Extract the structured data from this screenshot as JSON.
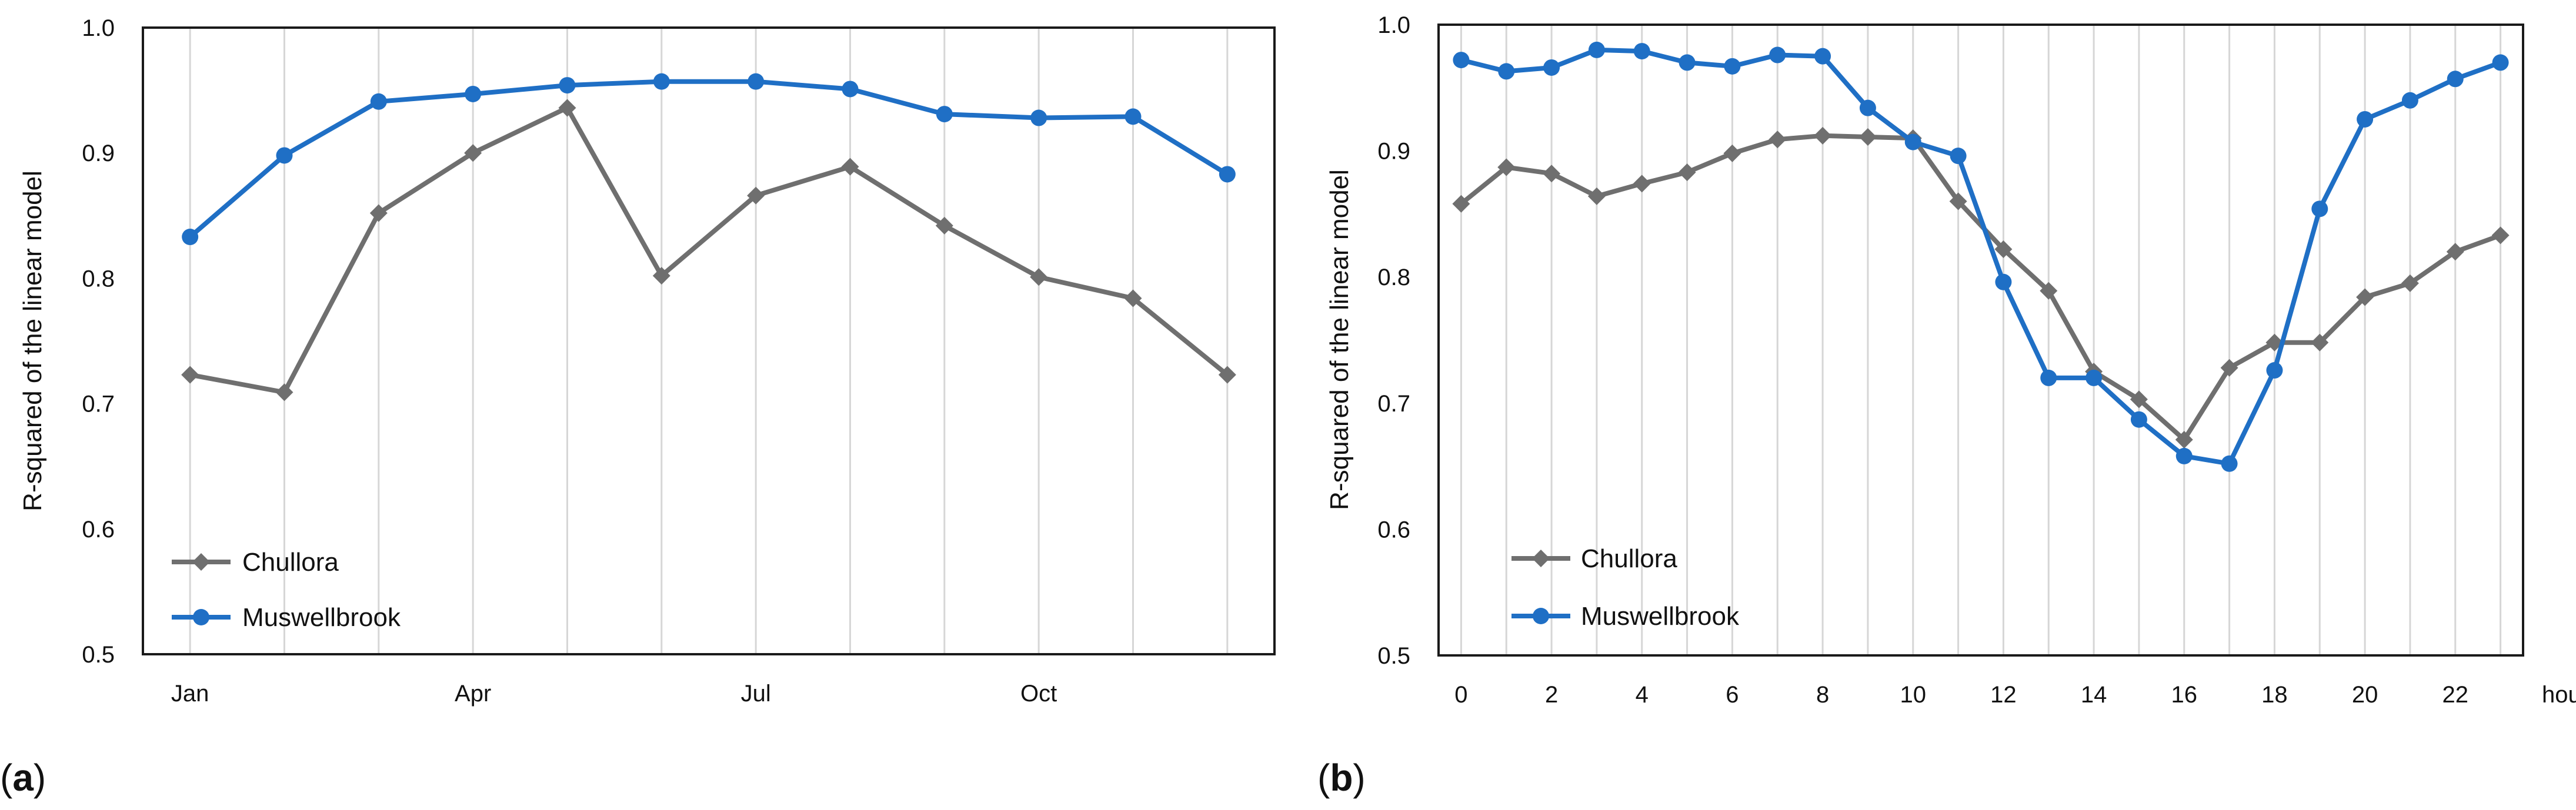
{
  "chart_data": [
    {
      "type": "line",
      "panel_label": "(a)",
      "title": "",
      "xlabel": "",
      "ylabel": "R-squared of the linear model",
      "ylim": [
        0.5,
        1.0
      ],
      "yticks": [
        0.5,
        0.6,
        0.7,
        0.8,
        0.9,
        1.0
      ],
      "ytick_labels": [
        "0.5",
        "0.6",
        "0.7",
        "0.8",
        "0.9",
        "1.0"
      ],
      "x": [
        1,
        2,
        3,
        4,
        5,
        6,
        7,
        8,
        9,
        10,
        11,
        12
      ],
      "xlim": [
        0.5,
        12.5
      ],
      "xtick_positions": [
        1,
        4,
        7,
        10
      ],
      "xtick_labels": [
        "Jan",
        "Apr",
        "Jul",
        "Oct"
      ],
      "grid": "vertical",
      "legend_position": "bottom-left",
      "series": [
        {
          "name": "Chullora",
          "color": "#6f6f6f",
          "marker": "diamond",
          "values": [
            0.723,
            0.709,
            0.852,
            0.9,
            0.936,
            0.802,
            0.866,
            0.889,
            0.842,
            0.801,
            0.784,
            0.723
          ]
        },
        {
          "name": "Muswellbrook",
          "color": "#1f6fc5",
          "marker": "circle",
          "values": [
            0.833,
            0.898,
            0.941,
            0.947,
            0.954,
            0.957,
            0.957,
            0.951,
            0.931,
            0.928,
            0.929,
            0.883
          ]
        }
      ]
    },
    {
      "type": "line",
      "panel_label": "(b)",
      "title": "",
      "xlabel": "hour",
      "ylabel": "R-squared of the linear model",
      "ylim": [
        0.5,
        1.0
      ],
      "yticks": [
        0.5,
        0.6,
        0.7,
        0.8,
        0.9,
        1.0
      ],
      "ytick_labels": [
        "0.5",
        "0.6",
        "0.7",
        "0.8",
        "0.9",
        "1.0"
      ],
      "x": [
        0,
        1,
        2,
        3,
        4,
        5,
        6,
        7,
        8,
        9,
        10,
        11,
        12,
        13,
        14,
        15,
        16,
        17,
        18,
        19,
        20,
        21,
        22,
        23
      ],
      "xlim": [
        -0.5,
        23.5
      ],
      "xtick_positions": [
        0,
        2,
        4,
        6,
        8,
        10,
        12,
        14,
        16,
        18,
        20,
        22
      ],
      "xtick_labels": [
        "0",
        "2",
        "4",
        "6",
        "8",
        "10",
        "12",
        "14",
        "16",
        "18",
        "20",
        "22"
      ],
      "grid": "vertical",
      "legend_position": "bottom-left",
      "series": [
        {
          "name": "Chullora",
          "color": "#6f6f6f",
          "marker": "diamond",
          "values": [
            0.858,
            0.887,
            0.882,
            0.864,
            0.874,
            0.883,
            0.898,
            0.909,
            0.912,
            0.911,
            0.91,
            0.86,
            0.822,
            0.789,
            0.725,
            0.703,
            0.671,
            0.728,
            0.748,
            0.748,
            0.784,
            0.795,
            0.82,
            0.833
          ]
        },
        {
          "name": "Muswellbrook",
          "color": "#1f6fc5",
          "marker": "circle",
          "values": [
            0.972,
            0.963,
            0.966,
            0.98,
            0.979,
            0.97,
            0.967,
            0.976,
            0.975,
            0.934,
            0.907,
            0.896,
            0.796,
            0.72,
            0.72,
            0.687,
            0.658,
            0.652,
            0.726,
            0.854,
            0.925,
            0.94,
            0.957,
            0.97
          ]
        }
      ]
    }
  ]
}
